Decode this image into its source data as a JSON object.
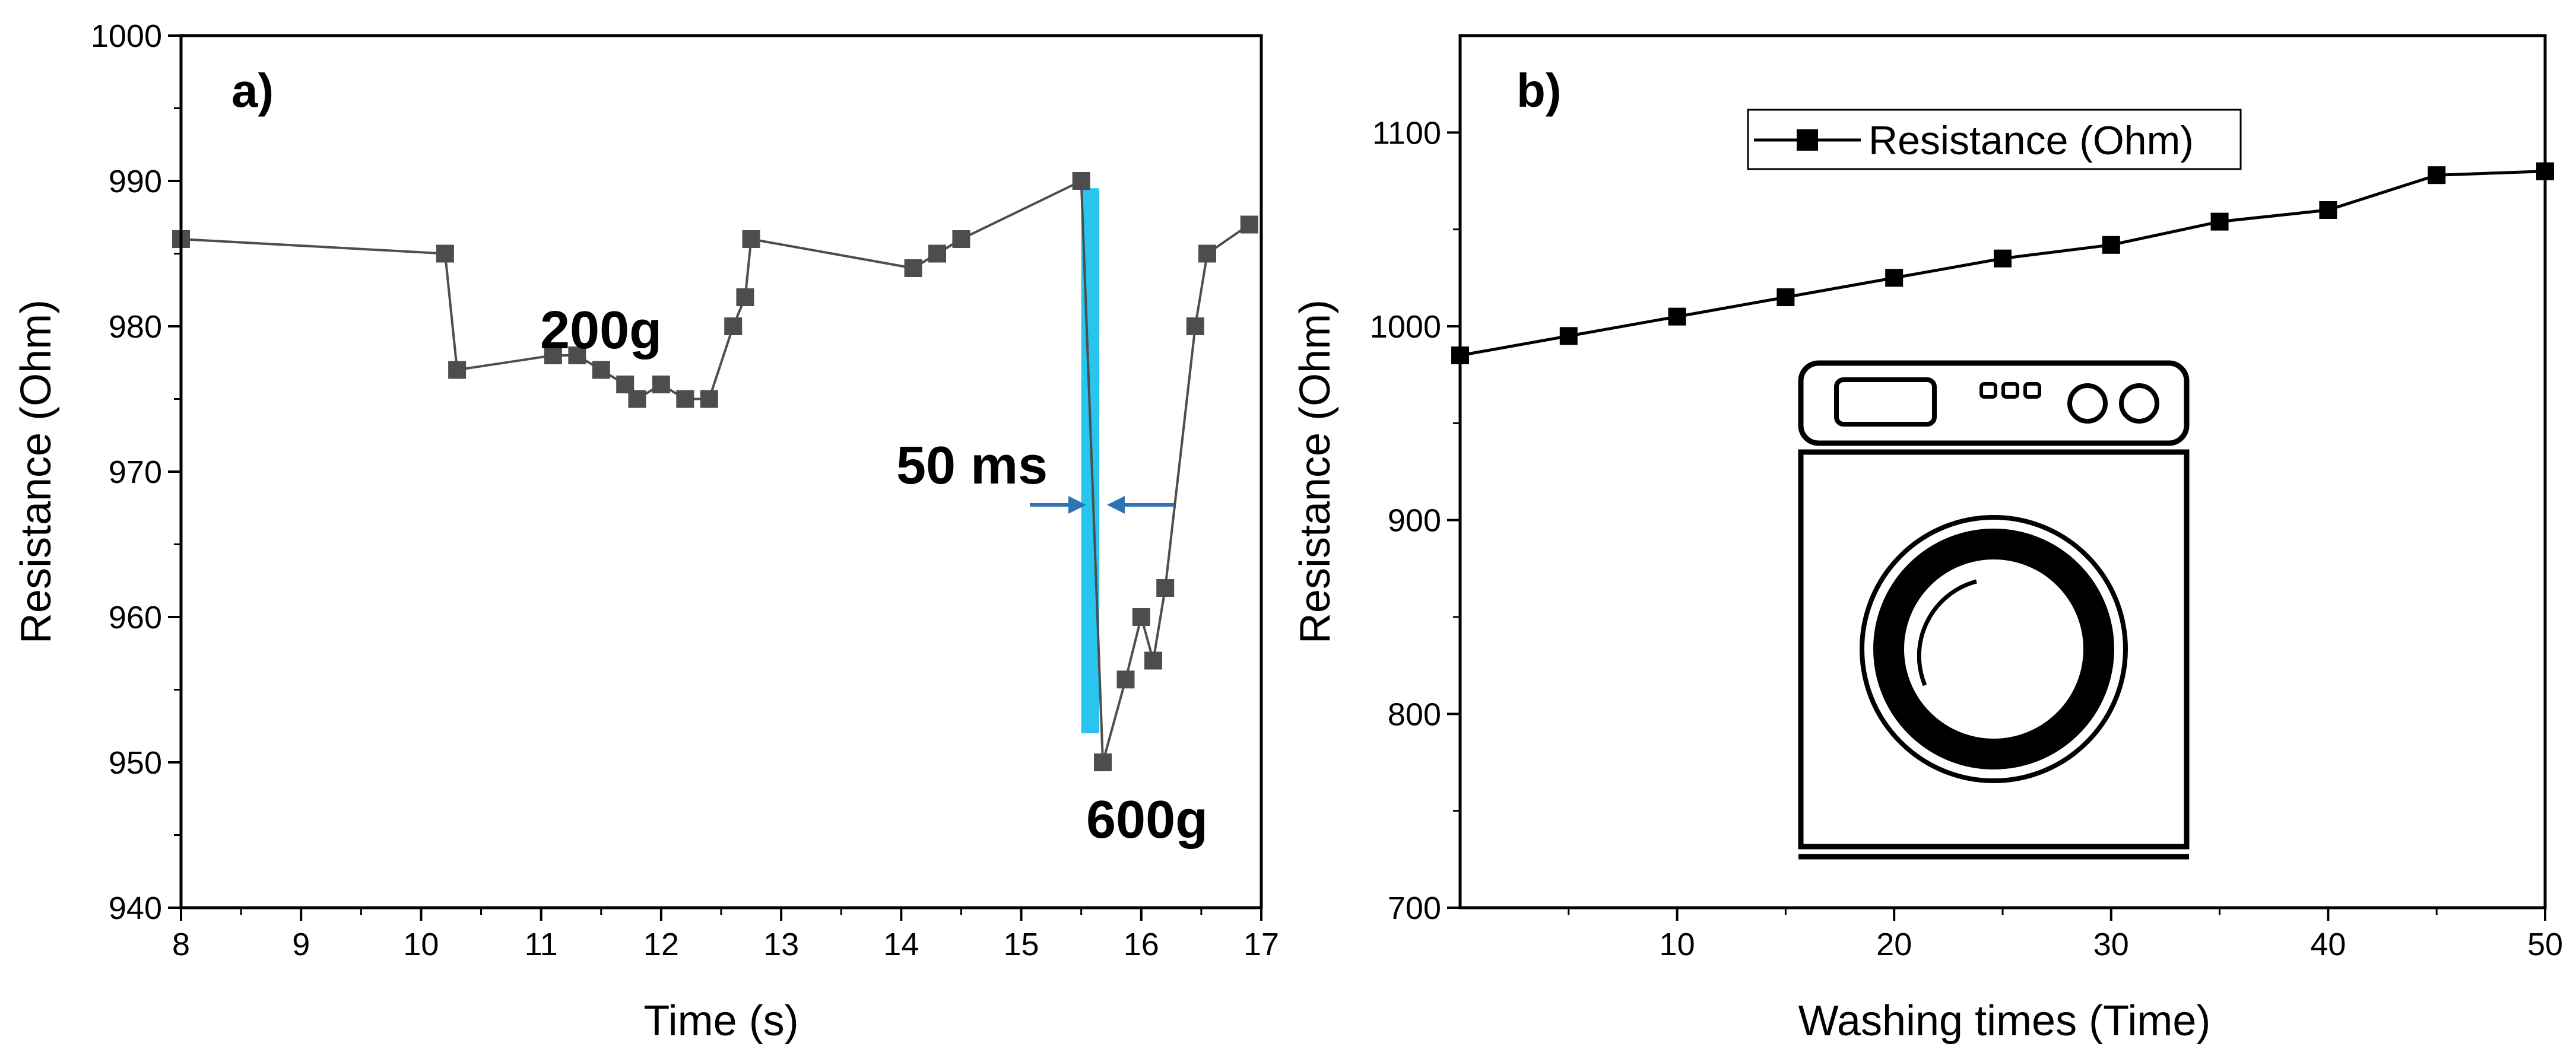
{
  "chart_data": [
    {
      "type": "line",
      "panel_label": "a)",
      "xlabel": "Time (s)",
      "ylabel": "Resistance (Ohm)",
      "xlim": [
        8,
        17
      ],
      "ylim": [
        940,
        1000
      ],
      "xticks": [
        "8",
        "9",
        "10",
        "11",
        "12",
        "13",
        "14",
        "15",
        "16",
        "17"
      ],
      "yticks": [
        "940",
        "950",
        "960",
        "970",
        "980",
        "990",
        "1000"
      ],
      "series": [
        {
          "name": "Resistance",
          "color": "#4d4d4d",
          "marker": "square",
          "x": [
            8.0,
            10.2,
            10.3,
            11.1,
            11.3,
            11.5,
            11.7,
            11.8,
            12.0,
            12.2,
            12.4,
            12.6,
            12.7,
            12.75,
            14.1,
            14.3,
            14.5,
            15.5,
            15.68,
            15.87,
            16.0,
            16.1,
            16.2,
            16.45,
            16.55,
            16.9
          ],
          "y": [
            986,
            985,
            977,
            978,
            978,
            977,
            976,
            975,
            976,
            975,
            975,
            980,
            982,
            986,
            984,
            985,
            986,
            990,
            950,
            955.7,
            960,
            957,
            962,
            980,
            985,
            987
          ]
        }
      ],
      "annotations": {
        "load_low": "200g",
        "load_high": "600g",
        "response_time": "50 ms"
      },
      "highlight_band": {
        "x": [
          15.5,
          15.65
        ],
        "y": [
          952,
          989.5
        ],
        "color": "#29c5ee"
      },
      "arrow_color": "#2e74b5"
    },
    {
      "type": "line",
      "panel_label": "b)",
      "xlabel": "Washing times (Time)",
      "ylabel": "Resistance (Ohm)",
      "xlim": [
        0,
        50
      ],
      "ylim": [
        700,
        1150
      ],
      "xticks": [
        "10",
        "20",
        "30",
        "40",
        "50"
      ],
      "yticks": [
        "700",
        "800",
        "900",
        "1000",
        "1100"
      ],
      "legend": {
        "label": "Resistance (Ohm)",
        "position": "top-center"
      },
      "series": [
        {
          "name": "Resistance (Ohm)",
          "color": "#000000",
          "marker": "square",
          "x": [
            0,
            5,
            10,
            15,
            20,
            25,
            30,
            35,
            40,
            45,
            50
          ],
          "y": [
            985,
            995,
            1005,
            1015,
            1025,
            1035,
            1042,
            1054,
            1060,
            1078,
            1080
          ]
        }
      ],
      "inset_icon": "washing-machine-icon"
    }
  ]
}
